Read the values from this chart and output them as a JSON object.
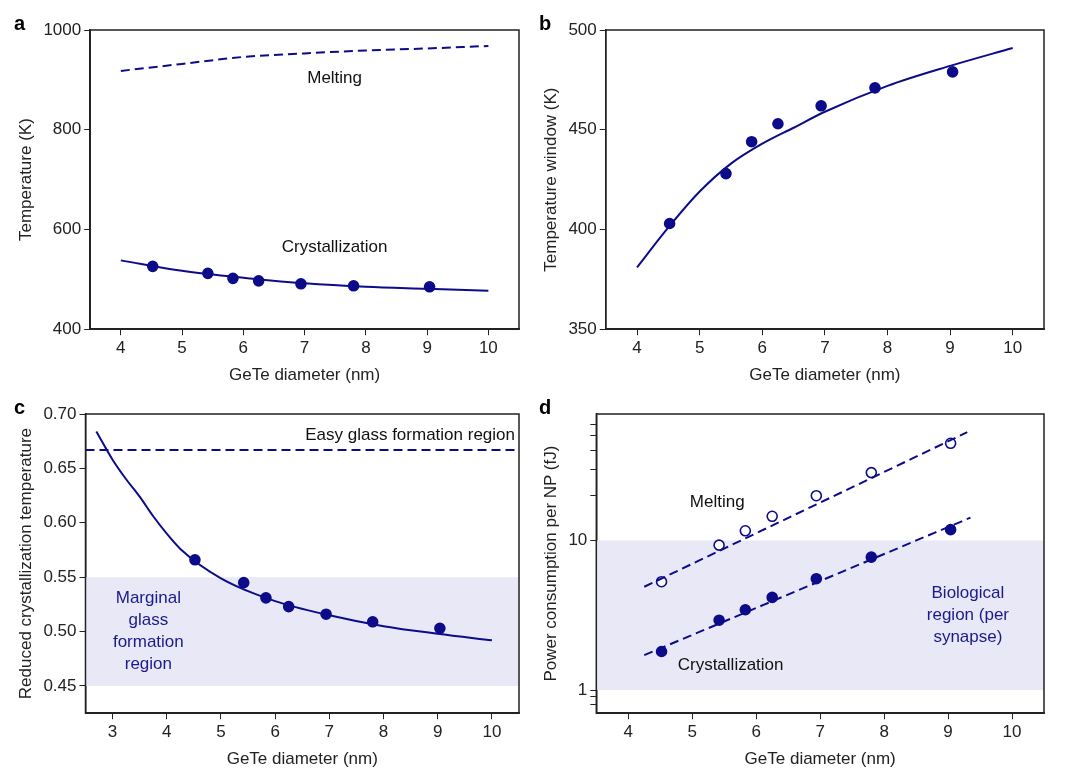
{
  "chart_data": [
    {
      "type": "line",
      "title": "a",
      "xlabel": "GeTe diameter (nm)",
      "ylabel": "Temperature (K)",
      "xlim": [
        3.5,
        10.5
      ],
      "xticks": [
        4,
        5,
        6,
        7,
        8,
        9,
        10
      ],
      "ylim": [
        400,
        1000
      ],
      "yticks": [
        400,
        600,
        800,
        1000
      ],
      "grid": false,
      "legend": false,
      "series": [
        {
          "name": "Melting",
          "color": "#0c0c8a",
          "line_style": "dashed",
          "x": [
            4,
            5,
            6,
            7,
            8,
            9,
            10
          ],
          "values": [
            918,
            932,
            946,
            953,
            959,
            963,
            968
          ]
        },
        {
          "name": "Crystallization",
          "color": "#0c0c8a",
          "line_style": "solid",
          "x": [
            4,
            5,
            6,
            7,
            8,
            9,
            10
          ],
          "values": [
            538,
            517,
            503,
            492,
            485,
            481,
            477
          ]
        },
        {
          "type": "scatter",
          "color": "#0c0c8a",
          "marker": "circle",
          "x": [
            4.52,
            5.42,
            5.83,
            6.25,
            6.94,
            7.8,
            9.04
          ],
          "values": [
            526,
            512,
            502,
            497,
            491,
            487,
            485
          ]
        }
      ]
    },
    {
      "type": "line",
      "title": "b",
      "xlabel": "GeTe diameter (nm)",
      "ylabel": "Temperature window (K)",
      "xlim": [
        3.5,
        10.5
      ],
      "xticks": [
        4,
        5,
        6,
        7,
        8,
        9,
        10
      ],
      "ylim": [
        350,
        500
      ],
      "yticks": [
        350,
        400,
        450,
        500
      ],
      "grid": false,
      "legend": false,
      "series": [
        {
          "color": "#0c0c8a",
          "line_style": "solid",
          "x": [
            4,
            4.5,
            5,
            5.5,
            6,
            6.5,
            7,
            8,
            9,
            10
          ],
          "values": [
            381,
            401,
            419,
            433,
            443,
            451,
            459,
            472,
            482,
            491
          ]
        },
        {
          "type": "scatter",
          "color": "#0c0c8a",
          "marker": "circle",
          "x": [
            4.52,
            5.42,
            5.83,
            6.25,
            6.94,
            7.8,
            9.04
          ],
          "values": [
            403,
            428,
            444,
            453,
            462,
            471,
            479
          ]
        }
      ]
    },
    {
      "type": "line",
      "title": "c",
      "xlabel": "GeTe diameter (nm)",
      "ylabel": "Reduced crystallization temperature",
      "xlim": [
        2.5,
        10.5
      ],
      "xticks": [
        3,
        4,
        5,
        6,
        7,
        8,
        9,
        10
      ],
      "ylim": [
        0.425,
        0.7
      ],
      "yticks": [
        0.45,
        {
          "value": 0.5,
          "label": "0.50"
        },
        0.55,
        {
          "value": 0.6,
          "label": "0.60"
        },
        0.65,
        {
          "value": 0.7,
          "label": "0.70"
        }
      ],
      "grid": false,
      "legend": false,
      "series": [
        {
          "color": "#0c0c8a",
          "line_style": "solid",
          "x": [
            2.7,
            3,
            3.25,
            3.5,
            3.75,
            4,
            4.25,
            5,
            6,
            7,
            8,
            9,
            10
          ],
          "values": [
            0.684,
            0.658,
            0.64,
            0.624,
            0.606,
            0.59,
            0.576,
            0.549,
            0.528,
            0.515,
            0.505,
            0.498,
            0.492
          ]
        },
        {
          "type": "scatter",
          "color": "#0c0c8a",
          "marker": "circle",
          "x": [
            4.52,
            5.42,
            5.83,
            6.25,
            6.94,
            7.8,
            9.04
          ],
          "values": [
            0.566,
            0.545,
            0.531,
            0.523,
            0.516,
            0.509,
            0.503
          ]
        }
      ],
      "ref_lines": [
        {
          "axis": "y",
          "value": 0.667,
          "label": "Easy glass formation region",
          "color": "#0c0c8a",
          "line_style": "dashed"
        }
      ],
      "bands": [
        {
          "axis": "y",
          "from": 0.45,
          "to": 0.55,
          "label": "Marginal glass formation region",
          "color": "#e8e8f6"
        }
      ]
    },
    {
      "type": "line",
      "title": "d",
      "xlabel": "GeTe diameter (nm)",
      "ylabel": "Power consumption per NP (fJ)",
      "log": "y",
      "xlim": [
        3.5,
        10.5
      ],
      "xticks": [
        4,
        5,
        6,
        7,
        8,
        9,
        10
      ],
      "ylim": [
        0.7,
        70
      ],
      "yticks": [
        {
          "value": 0.8,
          "label": null
        },
        {
          "value": 0.9,
          "label": null
        },
        1,
        10,
        {
          "value": 20,
          "label": null
        },
        {
          "value": 30,
          "label": null
        },
        {
          "value": 40,
          "label": null
        },
        {
          "value": 50,
          "label": null
        },
        {
          "value": 60,
          "label": null
        }
      ],
      "grid": false,
      "legend": false,
      "series": [
        {
          "color": "#0c0c8a",
          "line_style": "dashed",
          "x": [
            4.25,
            9.3
          ],
          "values": [
            4.9,
            52.9
          ]
        },
        {
          "type": "scatter",
          "name": "Melting",
          "color": "#0c0c8a",
          "marker": "circle",
          "x": [
            4.52,
            5.42,
            5.83,
            6.25,
            6.94,
            7.8,
            9.04
          ],
          "values": [
            5.3,
            9.3,
            11.6,
            14.5,
            19.9,
            28.4,
            44.6
          ]
        },
        {
          "color": "#0c0c8a",
          "line_style": "dashed",
          "x": [
            4.25,
            9.35
          ],
          "values": [
            1.71,
            14.2
          ]
        },
        {
          "type": "scatter",
          "name": "Crystallization",
          "color": "#0c0c8a",
          "marker": "circle",
          "x": [
            4.52,
            5.42,
            5.83,
            6.25,
            6.94,
            7.8,
            9.04
          ],
          "values": [
            1.81,
            2.93,
            3.44,
            4.16,
            5.55,
            7.73,
            11.8
          ]
        }
      ],
      "bands": [
        {
          "axis": "y",
          "from": 1,
          "to": 10,
          "label": "Biological region (per synapse)",
          "color": "#e8e8f6"
        }
      ]
    }
  ]
}
